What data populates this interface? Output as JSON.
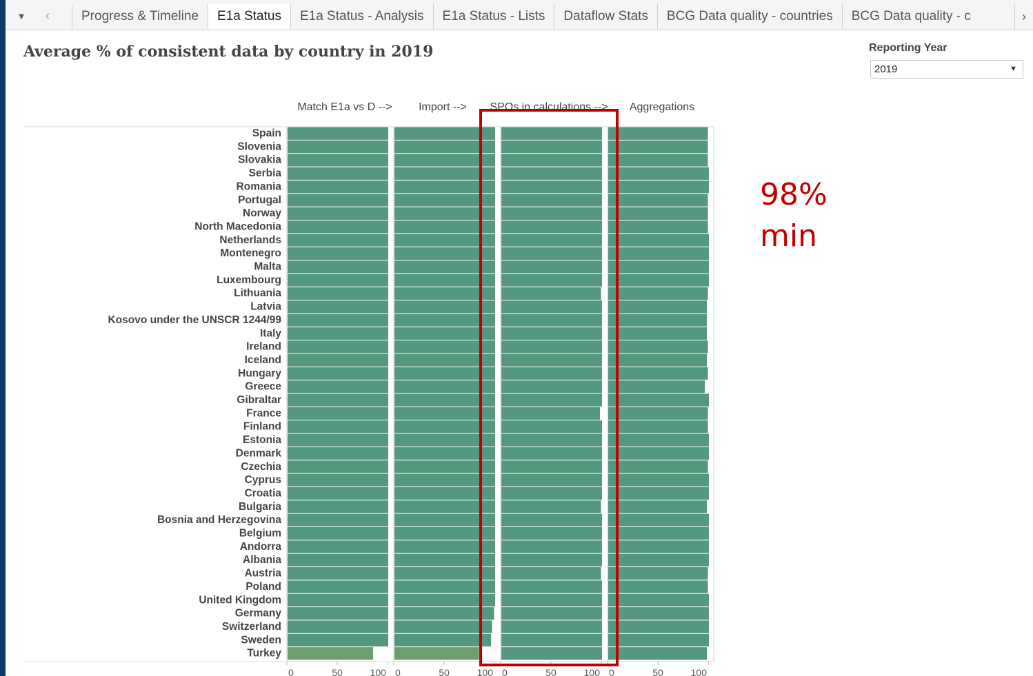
{
  "tabbar": {
    "menu_icon": "▼",
    "prev_icon": "‹",
    "next_icon": "›",
    "tabs": [
      {
        "label": "Progress & Timeline",
        "active": false
      },
      {
        "label": "E1a Status",
        "active": true
      },
      {
        "label": "E1a Status - Analysis",
        "active": false
      },
      {
        "label": "E1a Status - Lists",
        "active": false
      },
      {
        "label": "Dataflow Stats",
        "active": false
      },
      {
        "label": "BCG Data quality - countries",
        "active": false
      },
      {
        "label": "BCG Data quality - c",
        "active": false
      }
    ]
  },
  "page": {
    "title": "Average % of consistent data by country in 2019"
  },
  "filter": {
    "label": "Reporting Year",
    "value": "2019",
    "caret_icon": "▼"
  },
  "annotation": {
    "line1": "98%",
    "line2": "min",
    "color": "#c00000"
  },
  "chart_data": {
    "type": "bar",
    "orientation": "horizontal",
    "xlim": [
      0,
      100
    ],
    "x_ticks": [
      0,
      50,
      100
    ],
    "bar_color": "#54997f",
    "low_color": "#6e9e6e",
    "highlight_panel": 2,
    "categories": [
      "Spain",
      "Slovenia",
      "Slovakia",
      "Serbia",
      "Romania",
      "Portugal",
      "Norway",
      "North Macedonia",
      "Netherlands",
      "Montenegro",
      "Malta",
      "Luxembourg",
      "Lithuania",
      "Latvia",
      "Kosovo under the UNSCR 1244/99",
      "Italy",
      "Ireland",
      "Iceland",
      "Hungary",
      "Greece",
      "Gibraltar",
      "France",
      "Finland",
      "Estonia",
      "Denmark",
      "Czechia",
      "Cyprus",
      "Croatia",
      "Bulgaria",
      "Bosnia and Herzegovina",
      "Belgium",
      "Andorra",
      "Albania",
      "Austria",
      "Poland",
      "United Kingdom",
      "Germany",
      "Switzerland",
      "Sweden",
      "Turkey"
    ],
    "series": [
      {
        "name": "Match E1a vs D -->",
        "values": [
          100,
          100,
          100,
          100,
          100,
          100,
          100,
          100,
          100,
          100,
          100,
          100,
          100,
          100,
          100,
          100,
          100,
          100,
          100,
          100,
          100,
          100,
          100,
          100,
          100,
          100,
          100,
          100,
          100,
          100,
          100,
          100,
          100,
          100,
          100,
          100,
          100,
          100,
          100,
          85
        ]
      },
      {
        "name": "Import -->",
        "values": [
          100,
          100,
          100,
          100,
          100,
          100,
          100,
          100,
          100,
          100,
          100,
          100,
          100,
          100,
          100,
          100,
          100,
          100,
          100,
          100,
          100,
          100,
          100,
          100,
          100,
          100,
          100,
          100,
          100,
          100,
          100,
          100,
          100,
          100,
          100,
          100,
          99,
          97,
          96,
          84
        ]
      },
      {
        "name": "SPOs in calculations -->",
        "values": [
          100,
          100,
          100,
          100,
          100,
          100,
          100,
          100,
          100,
          100,
          100,
          100,
          99,
          100,
          100,
          100,
          100,
          100,
          100,
          100,
          100,
          98,
          100,
          100,
          100,
          100,
          100,
          100,
          99,
          100,
          100,
          100,
          100,
          99,
          100,
          100,
          100,
          100,
          100,
          100
        ]
      },
      {
        "name": "Aggregations",
        "values": [
          99,
          99,
          99,
          100,
          100,
          99,
          99,
          99,
          100,
          100,
          100,
          100,
          99,
          98,
          98,
          98,
          99,
          98,
          99,
          96,
          100,
          99,
          99,
          100,
          100,
          99,
          100,
          100,
          98,
          100,
          100,
          100,
          100,
          99,
          99,
          100,
          100,
          100,
          100,
          98
        ]
      }
    ]
  }
}
